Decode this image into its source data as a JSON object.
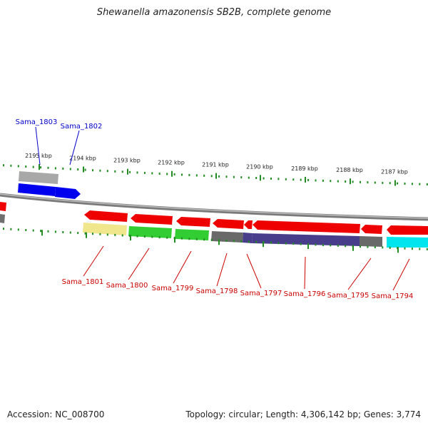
{
  "title": "Shewanella amazonensis SB2B, complete genome",
  "accession": "Accession: NC_008700",
  "summary": "Topology: circular; Length: 4,306,142 bp; Genes: 3,774",
  "colors": {
    "backbone": "#808080",
    "tick": "#228b22",
    "upper_label": "#0000cc",
    "lower_label": "#cc0000",
    "cds_forward": "#0000ee",
    "cds_reverse": "#ee0000",
    "cog_gray": "#a0a0a0",
    "cog_yellow": "#f0e68c",
    "cog_green": "#32cd32",
    "cog_darkgray": "#696969",
    "cog_purple": "#483d8b",
    "cog_cyan": "#00e5ee"
  },
  "scale_labels": [
    "2195 kbp",
    "2194 kbp",
    "2193 kbp",
    "2192 kbp",
    "2191 kbp",
    "2190 kbp",
    "2189 kbp",
    "2188 kbp",
    "2187 kbp"
  ],
  "upper_genes": [
    "Sama_1803",
    "Sama_1802"
  ],
  "lower_genes": [
    "Sama_1801",
    "Sama_1800",
    "Sama_1799",
    "Sama_1798",
    "Sama_1797",
    "Sama_1796",
    "Sama_1795",
    "Sama_1794"
  ]
}
